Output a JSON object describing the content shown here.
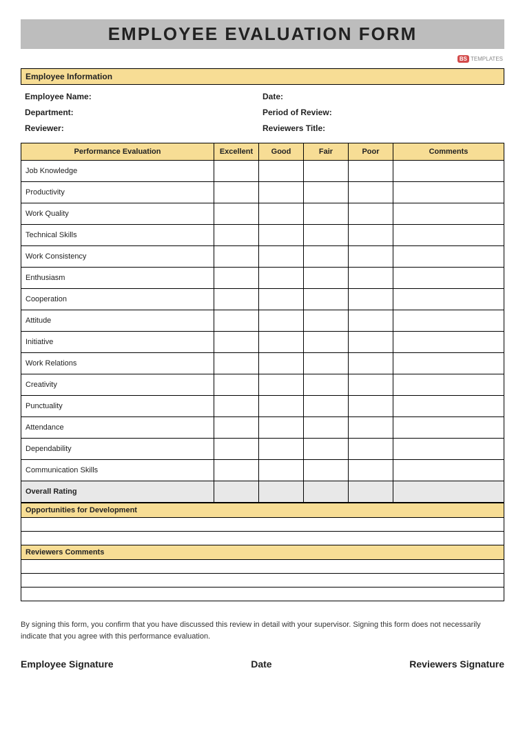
{
  "title": "EMPLOYEE EVALUATION FORM",
  "logo": {
    "badge": "BS",
    "text": "TEMPLATES"
  },
  "colors": {
    "title_bar_bg": "#bdbdbd",
    "band_bg": "#f7dd95",
    "overall_bg": "#e8e8e8",
    "border": "#000000",
    "page_bg": "#ffffff",
    "logo_badge_bg": "#d34a4a"
  },
  "sections": {
    "employee_info": {
      "heading": "Employee Information",
      "left": [
        "Employee Name:",
        "Department:",
        "Reviewer:"
      ],
      "right": [
        "Date:",
        "Period of Review:",
        "Reviewers Title:"
      ]
    },
    "performance": {
      "columns": [
        "Performance Evaluation",
        "Excellent",
        "Good",
        "Fair",
        "Poor",
        "Comments"
      ],
      "criteria": [
        "Job Knowledge",
        "Productivity",
        "Work Quality",
        "Technical Skills",
        "Work Consistency",
        "Enthusiasm",
        "Cooperation",
        "Attitude",
        "Initiative",
        "Work Relations",
        "Creativity",
        "Punctuality",
        "Attendance",
        "Dependability",
        "Communication Skills"
      ],
      "overall_label": "Overall Rating"
    },
    "development": {
      "heading": "Opportunities for Development",
      "blank_rows": 2
    },
    "reviewer_comments": {
      "heading": "Reviewers Comments",
      "blank_rows": 3
    }
  },
  "disclaimer": "By signing this form, you confirm that you have discussed this review in detail with your supervisor. Signing this form does not necessarily indicate that you agree with this performance evaluation.",
  "signatures": {
    "employee": "Employee Signature",
    "date": "Date",
    "reviewer": "Reviewers Signature"
  }
}
